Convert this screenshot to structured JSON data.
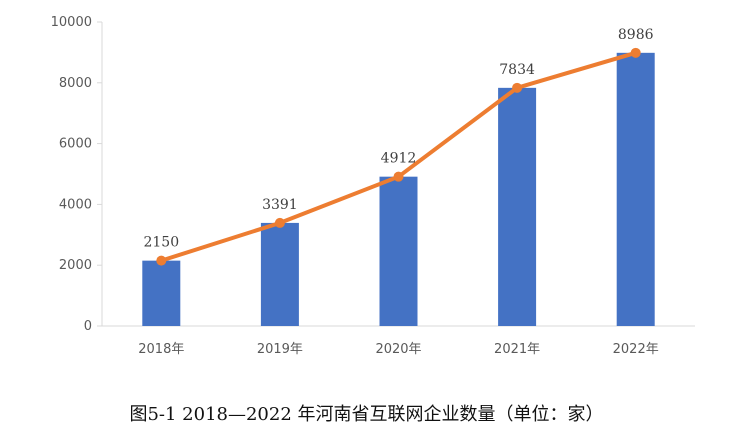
{
  "chart_data": {
    "type": "bar",
    "categories": [
      "2018年",
      "2019年",
      "2020年",
      "2021年",
      "2022年"
    ],
    "series": [
      {
        "type": "bar",
        "values": [
          2150,
          3391,
          4912,
          7834,
          8986
        ],
        "color": "#4472C4"
      },
      {
        "type": "line",
        "values": [
          2150,
          3391,
          4912,
          7834,
          8986
        ],
        "color": "#ED7D31"
      }
    ],
    "data_labels": [
      "2150",
      "3391",
      "4912",
      "7834",
      "8986"
    ],
    "ylim": [
      0,
      10000
    ],
    "yticks": [
      0,
      2000,
      4000,
      6000,
      8000,
      10000
    ],
    "grid": false,
    "xlabel": "",
    "ylabel": ""
  },
  "caption": "图5-1 2018—2022 年河南省互联网企业数量（单位：家）"
}
